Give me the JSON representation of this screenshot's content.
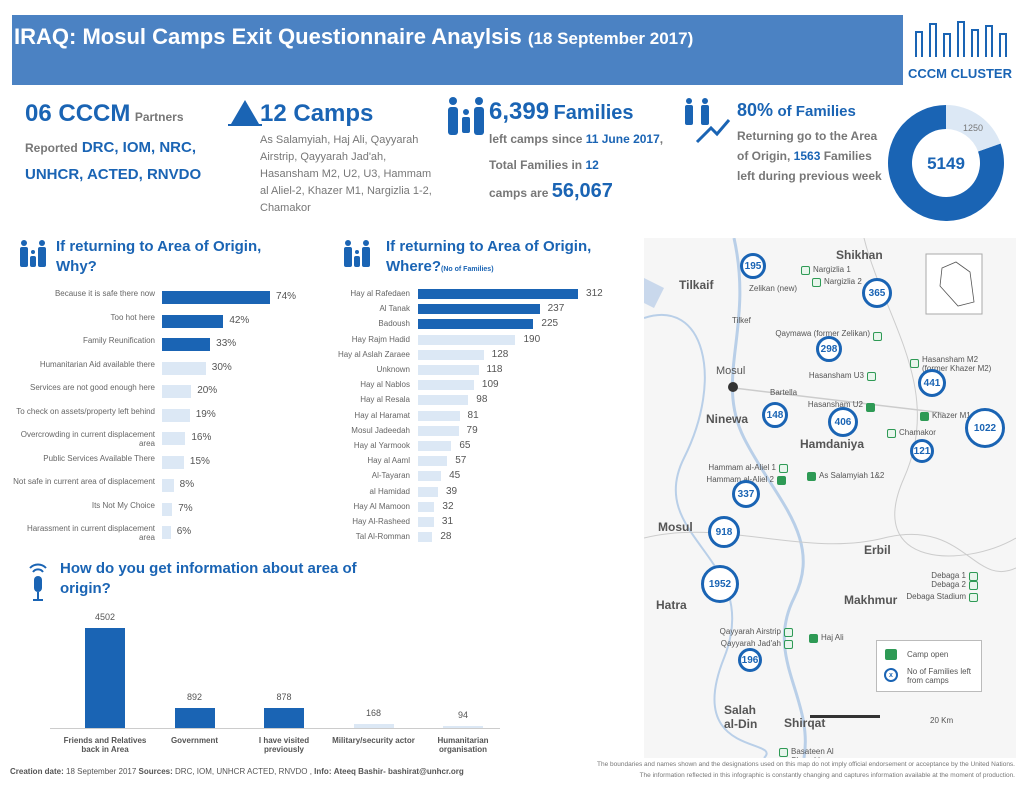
{
  "header": {
    "title": "IRAQ: Mosul Camps Exit Questionnaire Anaylsis",
    "date": "(18 September 2017)",
    "logo_text": "CCCM CLUSTER"
  },
  "stats": {
    "partners": {
      "count": "06 CCCM",
      "suffix": "Partners",
      "reported": "Reported",
      "list": "DRC, IOM, NRC, UNHCR, ACTED, RNVDO"
    },
    "camps": {
      "count": "12 Camps",
      "list": "As Salamyiah, Haj Ali, Qayyarah Airstrip, Qayyarah Jad'ah, Hasansham M2, U2, U3, Hammam al Aliel-2, Khazer M1, Nargizlia 1-2, Chamakor"
    },
    "families": {
      "count": "6,399",
      "unit": "Families",
      "t1": "left camps since",
      "date": "11 June 2017",
      "t2": ", Total Families in",
      "camps": "12",
      "t3": "camps are",
      "total": "56,067"
    },
    "returning": {
      "pct": "80%",
      "unit": "of Families",
      "t1": "Returning go to the Area of Origin,",
      "n": "1563",
      "t2": "Families left during previous week"
    }
  },
  "colors": {
    "dark": "#1a64b4",
    "light": "#dce8f5",
    "header": "#4b82c3",
    "camp": "#2e9a55"
  },
  "chart_data": [
    {
      "type": "bar",
      "orientation": "horizontal",
      "title": "If returning to Area of Origin, Why?",
      "categories": [
        "Because it is safe there now",
        "Too hot here",
        "Family Reunification",
        "Humanitarian Aid available there",
        "Services are not good enough here",
        "To check on assets/property left behind",
        "Overcrowding in current displacement area",
        "Public Services Available There",
        "Not safe in current area of displacement",
        "Its Not My Choice",
        "Harassment in current displacement area"
      ],
      "values": [
        74,
        42,
        33,
        30,
        20,
        19,
        16,
        15,
        8,
        7,
        6
      ],
      "labels": [
        "74%",
        "42%",
        "33%",
        "30%",
        "20%",
        "19%",
        "16%",
        "15%",
        "8%",
        "7%",
        "6%"
      ],
      "unit": "%",
      "highlight_top": 3
    },
    {
      "type": "bar",
      "orientation": "horizontal",
      "title": "If returning to Area of Origin, Where?",
      "subtitle": "(No of Families)",
      "categories": [
        "Hay al Rafedaen",
        "Al Tanak",
        "Badoush",
        "Hay Rajm Hadid",
        "Hay al Aslah Zaraee",
        "Unknown",
        "Hay al Nablos",
        "Hay al Resala",
        "Hay al Haramat",
        "Mosul Jadeedah",
        "Hay al Yarmook",
        "Hay al Aaml",
        "Al-Tayaran",
        "al Hamidad",
        "Hay Al Mamoon",
        "Hay Al-Rasheed",
        "Tal Al-Romman"
      ],
      "values": [
        312,
        237,
        225,
        190,
        128,
        118,
        109,
        98,
        81,
        79,
        65,
        57,
        45,
        39,
        32,
        31,
        28
      ],
      "highlight_top": 3
    },
    {
      "type": "bar",
      "orientation": "vertical",
      "title": "How do you get information about area of origin?",
      "categories": [
        "Friends and Relatives back in Area",
        "Government",
        "I have visited previously",
        "Military/security actor",
        "Humanitarian organisation"
      ],
      "values": [
        4502,
        892,
        878,
        168,
        94
      ]
    },
    {
      "type": "pie",
      "variant": "donut",
      "values": [
        5149,
        1250
      ],
      "labels": [
        "5149",
        "1250"
      ]
    }
  ],
  "map": {
    "regions": [
      "Shikhan",
      "Tilkaif",
      "Ninewa",
      "Hamdaniya",
      "Mosul",
      "Erbil",
      "Makhmur",
      "Hatra",
      "Salah al-Din",
      "Shirqat"
    ],
    "places": [
      "Tilkef",
      "Mosul",
      "Bartella",
      "Zelikan (new)"
    ],
    "camps": [
      "Nargizlia 1",
      "Nargizlia 2",
      "Qaymawa (former Zelikan)",
      "Hasansham U3",
      "Hasansham M2 (former Khazer M2)",
      "Hasansham U2",
      "Khazer M1",
      "Chamakor",
      "Hammam al-Aliel 1",
      "Hammam al-Aliel 2",
      "As Salamyiah 1&2",
      "Debaga 1",
      "Debaga 2",
      "Debaga Stadium",
      "Qayyarah Airstrip",
      "Qayyarah Jad'ah",
      "Haj Ali",
      "Basateen Al Sheoukh"
    ],
    "circles": [
      "195",
      "365",
      "298",
      "441",
      "148",
      "406",
      "1022",
      "121",
      "337",
      "918",
      "1952",
      "196"
    ],
    "legend": {
      "camp_open": "Camp open",
      "families": "No of Families left from camps",
      "symbol": "x"
    },
    "scale": "20 Km"
  },
  "footer": {
    "creation_label": "Creation date:",
    "creation": "18 September 2017",
    "sources_label": "Sources:",
    "sources": "DRC, IOM, UNHCR ACTED, RNVDO ,",
    "info_label": "Info:",
    "info": "Ateeq Bashir- bashirat@unhcr.org",
    "disclaimer1": "The boundaries and names shown and the designations used on this map do not imply official endorsement or acceptance by the United Nations.",
    "disclaimer2": "The information reflected in this infographic is constantly changing and captures information available at the moment of production."
  }
}
